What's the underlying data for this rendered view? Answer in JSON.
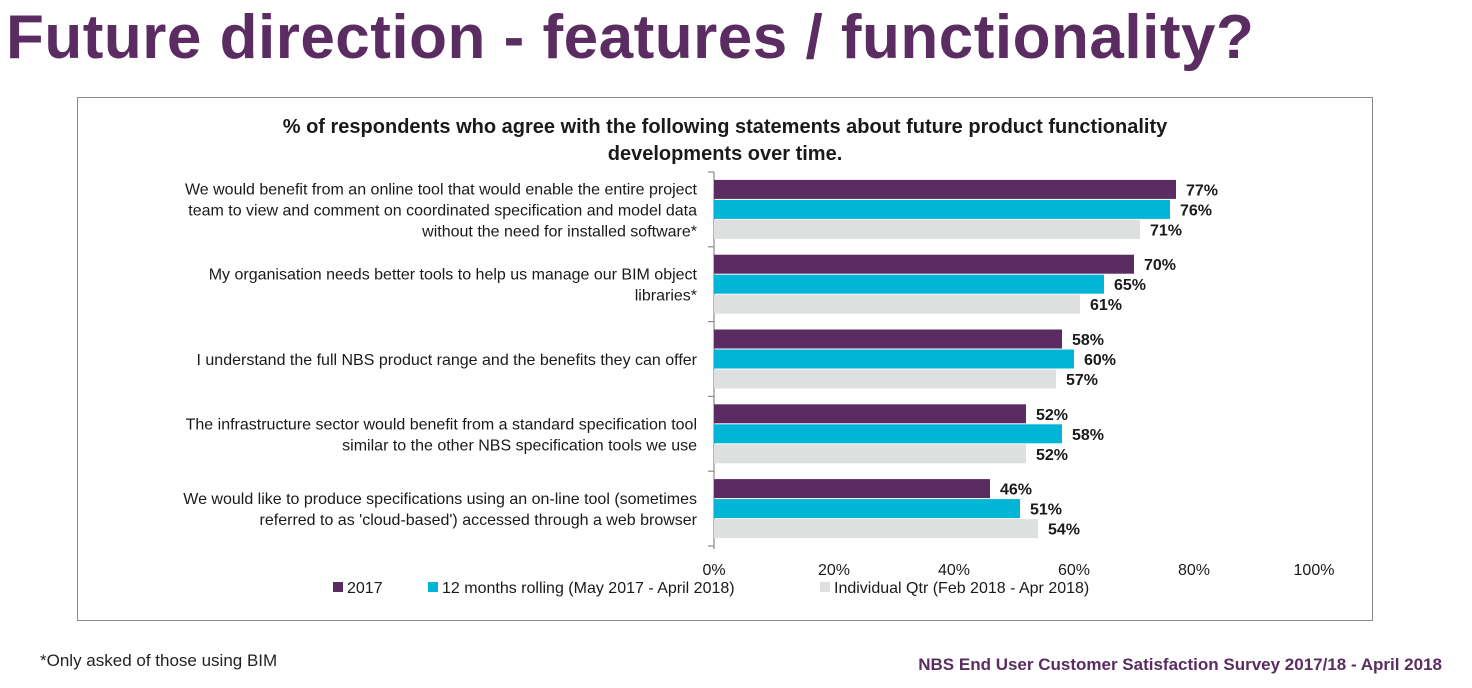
{
  "page": {
    "title": "Future direction - features / functionality?",
    "footnote": "*Only asked of those using BIM",
    "source": "NBS End User Customer Satisfaction Survey 2017/18 - April 2018"
  },
  "chart_data": {
    "type": "bar",
    "orientation": "horizontal",
    "title": "% of respondents who agree with the following statements about future product functionality developments over time.",
    "title_lines": [
      "% of respondents who agree with the following statements about future product functionality",
      "developments over time."
    ],
    "categories": [
      [
        "We would benefit from an online tool that would enable the entire project",
        "team to view and comment on coordinated specification and model data",
        "without the need for installed software*"
      ],
      [
        "My organisation needs better tools to help us manage our BIM object",
        "libraries*"
      ],
      [
        "I understand the full NBS product range and the benefits they can offer"
      ],
      [
        "The infrastructure sector would benefit from a standard specification tool",
        "similar to the other NBS specification tools we use"
      ],
      [
        "We would like to produce specifications using an on-line tool (sometimes",
        "referred to as 'cloud-based') accessed through a web browser"
      ]
    ],
    "series": [
      {
        "name": "2017",
        "color": "#5b2c61",
        "values": [
          77,
          70,
          58,
          52,
          46
        ],
        "labels": [
          "77%",
          "70%",
          "58%",
          "52%",
          "46%"
        ]
      },
      {
        "name": "12 months rolling (May 2017 - April 2018)",
        "color": "#00b5d6",
        "values": [
          76,
          65,
          60,
          58,
          51
        ],
        "labels": [
          "76%",
          "65%",
          "60%",
          "58%",
          "51%"
        ]
      },
      {
        "name": "Individual Qtr (Feb 2018 - Apr 2018)",
        "color": "#dde0df",
        "values": [
          71,
          61,
          57,
          52,
          54
        ],
        "labels": [
          "71%",
          "61%",
          "57%",
          "52%",
          "54%"
        ]
      }
    ],
    "xlim": [
      0,
      100
    ],
    "xticks": [
      0,
      20,
      40,
      60,
      80,
      100
    ],
    "xtick_labels": [
      "0%",
      "20%",
      "40%",
      "60%",
      "80%",
      "100%"
    ],
    "grid": false,
    "legend_position": "bottom-left"
  }
}
